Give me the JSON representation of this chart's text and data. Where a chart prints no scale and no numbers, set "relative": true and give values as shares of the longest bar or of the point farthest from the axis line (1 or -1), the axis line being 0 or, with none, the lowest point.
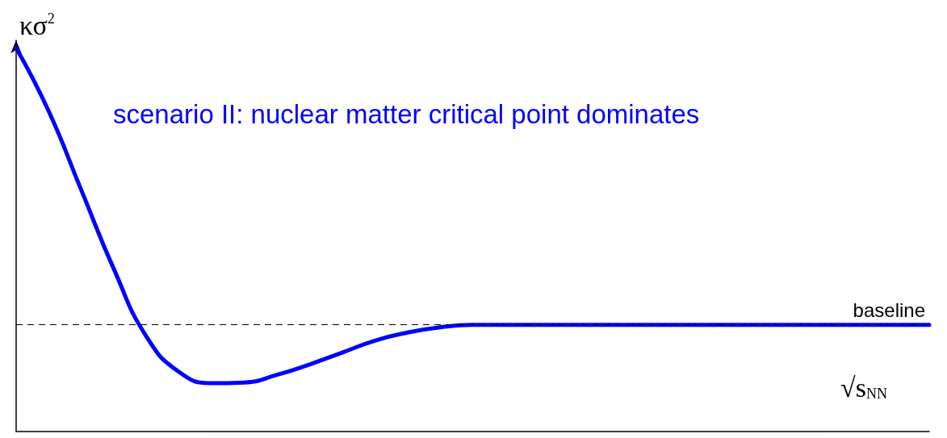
{
  "chart_data": {
    "type": "line",
    "relative": true,
    "xlabel": "√s$_{NN}$",
    "ylabel": "κσ$^{2}$",
    "annotations": [
      "scenario II: nuclear matter critical point dominates"
    ],
    "categories": [
      null,
      null,
      null,
      null,
      null,
      null,
      null,
      null,
      null,
      null,
      null,
      null,
      null,
      null,
      null,
      null,
      null,
      null,
      null,
      null,
      null,
      null,
      null,
      null,
      null,
      null,
      null,
      null,
      null
    ],
    "series": [
      {
        "color": "#0000ff",
        "values": [
          1.0,
          0.835,
          0.629,
          0.423,
          0.247,
          0.155,
          0.126,
          0.128,
          0.148,
          0.175,
          0.206,
          0.237,
          0.258,
          0.272,
          0.278,
          0.278,
          0.278,
          0.278,
          0.278,
          0.278,
          0.278,
          0.278,
          0.278,
          0.278,
          0.278,
          0.278,
          0.278,
          0.278,
          0.278
        ]
      }
    ],
    "ref_lines": [
      {
        "axis": "y",
        "value": 0.278,
        "label": "baseline",
        "color": "#000000",
        "line_style": "dashed"
      }
    ],
    "grid": false,
    "marker": "none",
    "line_style": "solid"
  }
}
